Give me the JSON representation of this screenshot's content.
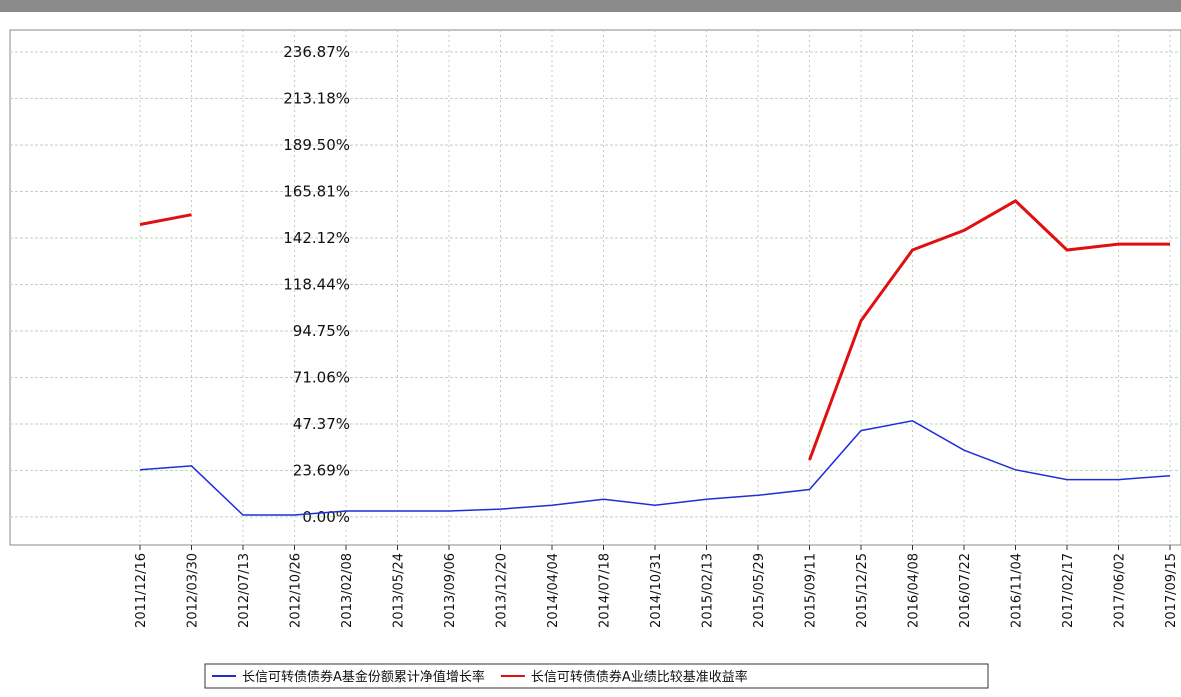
{
  "chart_data": {
    "type": "line",
    "x": [
      "2011/12/16",
      "2012/03/30",
      "2012/07/13",
      "2012/10/26",
      "2013/02/08",
      "2013/05/24",
      "2013/09/06",
      "2013/12/20",
      "2014/04/04",
      "2014/07/18",
      "2014/10/31",
      "2015/02/13",
      "2015/05/29",
      "2015/09/11",
      "2015/12/25",
      "2016/04/08",
      "2016/07/22",
      "2016/11/04",
      "2017/02/17",
      "2017/06/02",
      "2017/09/15"
    ],
    "series": [
      {
        "name": "长信可转债债券A基金份额累计净值增长率",
        "color": "#1f2fd6",
        "values": [
          24,
          26,
          1,
          1,
          3,
          3,
          3,
          4,
          6,
          9,
          6,
          9,
          11,
          14,
          44,
          49,
          34,
          24,
          19,
          19,
          21
        ]
      },
      {
        "name": "长信可转债债券A业绩比较基准收益率",
        "color": "#e01010",
        "values": [
          149,
          154,
          null,
          null,
          null,
          null,
          null,
          null,
          null,
          null,
          null,
          null,
          null,
          29,
          100,
          136,
          146,
          161,
          136,
          139,
          139
        ]
      }
    ],
    "ylim": [
      -14.3,
      248.1
    ],
    "yticks": [
      {
        "value": 0,
        "label": "0.00%"
      },
      {
        "value": 23.69,
        "label": "23.69%"
      },
      {
        "value": 47.37,
        "label": "47.37%"
      },
      {
        "value": 71.06,
        "label": "71.06%"
      },
      {
        "value": 94.75,
        "label": "94.75%"
      },
      {
        "value": 118.44,
        "label": "118.44%"
      },
      {
        "value": 142.12,
        "label": "142.12%"
      },
      {
        "value": 165.81,
        "label": "165.81%"
      },
      {
        "value": 189.5,
        "label": "189.50%"
      },
      {
        "value": 213.18,
        "label": "213.18%"
      },
      {
        "value": 236.87,
        "label": "236.87%"
      }
    ],
    "grid": true,
    "legend": "bottom"
  }
}
